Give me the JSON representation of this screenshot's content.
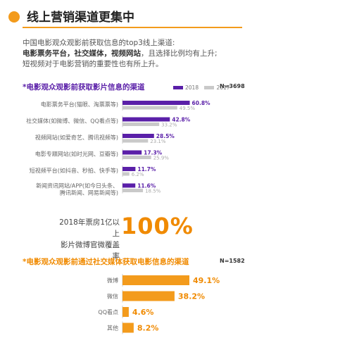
{
  "header": {
    "title": "线上营销渠道更集中"
  },
  "intro": {
    "line1": "中国电影观众观影前获取信息的top3线上渠道:",
    "line2_bold": "电影票务平台，社交媒体，视频网站",
    "line2_rest": "，且选择比例均有上升;",
    "line3": "短视频对于电影营销的重要性也有所上升。"
  },
  "stat": {
    "line1": "2018年票房1亿以上",
    "line2": "影片微博官微覆盖率",
    "big": "100%"
  },
  "colors": {
    "purple": "#5a1fa8",
    "lightpurple": "#9b7fd4",
    "orange": "#f39b1c",
    "grey": "#c9c9c9"
  },
  "chart_data": [
    {
      "type": "bar",
      "title": "*电影观众观影前获取影片信息的渠道",
      "n_label": "N=3698",
      "legend": [
        "2018",
        "2017"
      ],
      "categories": [
        [
          "电影票务平台(猫眼、淘票票等)"
        ],
        [
          "社交媒体(如微博、微信、QQ看点等)"
        ],
        [
          "视频网站(如爱奇艺、腾讯视频等)"
        ],
        [
          "电影专题网站(如时光网、豆瓣等)"
        ],
        [
          "短视频平台(如抖音、秒拍、快手等)"
        ],
        [
          "新闻资讯网站/APP(如今日头条、",
          "腾讯新闻、网易新闻等)"
        ]
      ],
      "series": [
        {
          "name": "2018",
          "values": [
            60.8,
            42.8,
            28.5,
            17.3,
            11.7,
            11.6
          ],
          "labels": [
            "60.8%",
            "42.8%",
            "28.5%",
            "17.3%",
            "11.7%",
            "11.6%"
          ]
        },
        {
          "name": "2017",
          "values": [
            49.5,
            33.2,
            23.1,
            25.9,
            6.2,
            18.5
          ],
          "labels": [
            "49.5%",
            "33.2%",
            "23.1%",
            "25.9%",
            "6.2%",
            "18.5%"
          ]
        }
      ]
    },
    {
      "type": "bar",
      "title": "*电影观众观影前通过社交媒体获取电影信息的渠道",
      "n_label": "N=1582",
      "categories": [
        "微博",
        "微信",
        "QQ看点",
        "其他"
      ],
      "values": [
        49.1,
        38.2,
        4.6,
        8.2
      ],
      "labels": [
        "49.1%",
        "38.2%",
        "4.6%",
        "8.2%"
      ]
    }
  ]
}
